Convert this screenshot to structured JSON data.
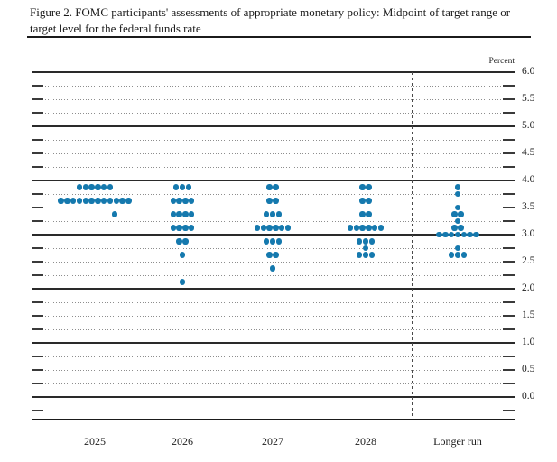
{
  "figure": {
    "title": "Figure 2. FOMC participants' assessments of appropriate monetary policy: Midpoint of target range or target level for the federal funds rate"
  },
  "chart_data": {
    "type": "scatter",
    "title": "Figure 2. FOMC participants' assessments of appropriate monetary policy: Midpoint of target range or target level for the federal funds rate",
    "unit_label": "Percent",
    "ylabel": "Percent",
    "xlabel": "",
    "ylim": [
      0.0,
      6.0
    ],
    "y_label_step": 0.5,
    "y_minor_step": 0.25,
    "grid": "solid lines at integers, dotted lines at quarters",
    "y_tick_labels": [
      "6.0",
      "5.5",
      "5.0",
      "4.5",
      "4.0",
      "3.5",
      "3.0",
      "2.5",
      "2.0",
      "1.5",
      "1.0",
      "0.5",
      "0.0"
    ],
    "dot_color": "#1579ae",
    "categories": [
      "2025",
      "2026",
      "2027",
      "2028",
      "Longer run"
    ],
    "separator_after": "2028",
    "series": [
      {
        "category": "2025",
        "dots": [
          {
            "rate": 3.875,
            "count": 6
          },
          {
            "rate": 3.625,
            "count": 12
          },
          {
            "rate": 3.375,
            "count": 1,
            "x_offset": 22
          }
        ]
      },
      {
        "category": "2026",
        "dots": [
          {
            "rate": 3.875,
            "count": 3
          },
          {
            "rate": 3.625,
            "count": 4
          },
          {
            "rate": 3.375,
            "count": 4
          },
          {
            "rate": 3.125,
            "count": 4
          },
          {
            "rate": 2.875,
            "count": 2
          },
          {
            "rate": 2.625,
            "count": 1
          },
          {
            "rate": 2.125,
            "count": 1
          }
        ]
      },
      {
        "category": "2027",
        "dots": [
          {
            "rate": 3.875,
            "count": 2
          },
          {
            "rate": 3.625,
            "count": 2
          },
          {
            "rate": 3.375,
            "count": 3
          },
          {
            "rate": 3.125,
            "count": 6
          },
          {
            "rate": 2.875,
            "count": 3
          },
          {
            "rate": 2.625,
            "count": 2
          },
          {
            "rate": 2.375,
            "count": 1
          }
        ]
      },
      {
        "category": "2028",
        "dots": [
          {
            "rate": 3.875,
            "count": 2
          },
          {
            "rate": 3.625,
            "count": 2
          },
          {
            "rate": 3.375,
            "count": 2
          },
          {
            "rate": 3.125,
            "count": 6
          },
          {
            "rate": 2.875,
            "count": 3
          },
          {
            "rate": 2.75,
            "count": 1
          },
          {
            "rate": 2.625,
            "count": 3
          }
        ]
      },
      {
        "category": "Longer run",
        "dots": [
          {
            "rate": 3.875,
            "count": 1
          },
          {
            "rate": 3.75,
            "count": 1
          },
          {
            "rate": 3.5,
            "count": 1
          },
          {
            "rate": 3.375,
            "count": 2
          },
          {
            "rate": 3.25,
            "count": 1
          },
          {
            "rate": 3.125,
            "count": 2
          },
          {
            "rate": 3.0,
            "count": 7
          },
          {
            "rate": 2.75,
            "count": 1
          },
          {
            "rate": 2.625,
            "count": 3
          }
        ]
      }
    ]
  }
}
